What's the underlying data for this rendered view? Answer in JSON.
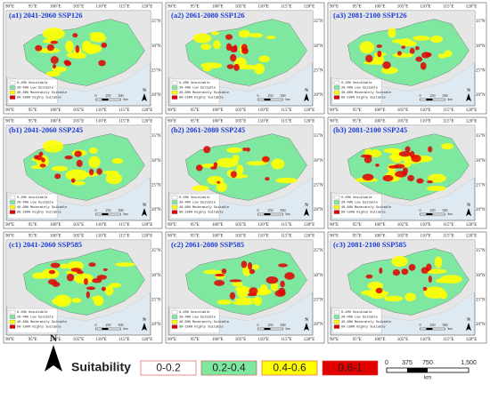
{
  "panels": [
    {
      "title": "(a1) 2041-2060 SSP126"
    },
    {
      "title": "(a2) 2061-2080 SSP126"
    },
    {
      "title": "(a3) 2081-2100 SSP126"
    },
    {
      "title": "(b1) 2041-2060 SSP245"
    },
    {
      "title": "(b2) 2061-2080 SSP245"
    },
    {
      "title": "(b3) 2081-2100 SSP245"
    },
    {
      "title": "(c1) 2041-2060 SSP585"
    },
    {
      "title": "(c2) 2061-2080 SSP585"
    },
    {
      "title": "(c3) 2081-2100 SSP585"
    }
  ],
  "lon_labels": [
    "90°E",
    "95°E",
    "100°E",
    "105°E",
    "110°E",
    "115°E",
    "120°E"
  ],
  "lat_labels": [
    "35°N",
    "30°N",
    "25°N",
    "20°N"
  ],
  "inset_legend": [
    "0-20% Unsuitable",
    "20-40% Low Suitable",
    "40-60% Moderately Suitable",
    "60-100% Highly Suitable"
  ],
  "inset_scale": [
    "0",
    "250",
    "500",
    "km"
  ],
  "north": "N",
  "legend": {
    "title": "Suitability",
    "items": [
      {
        "label": "0-0.2",
        "color": "#ffffff"
      },
      {
        "label": "0.2-0.4",
        "color": "#7ee8a0"
      },
      {
        "label": "0.4-0.6",
        "color": "#ffff00"
      },
      {
        "label": "0.6-1",
        "color": "#e00000"
      }
    ]
  },
  "scale": {
    "labels": [
      "0",
      "375",
      "750",
      "1,500"
    ],
    "unit": "km"
  }
}
